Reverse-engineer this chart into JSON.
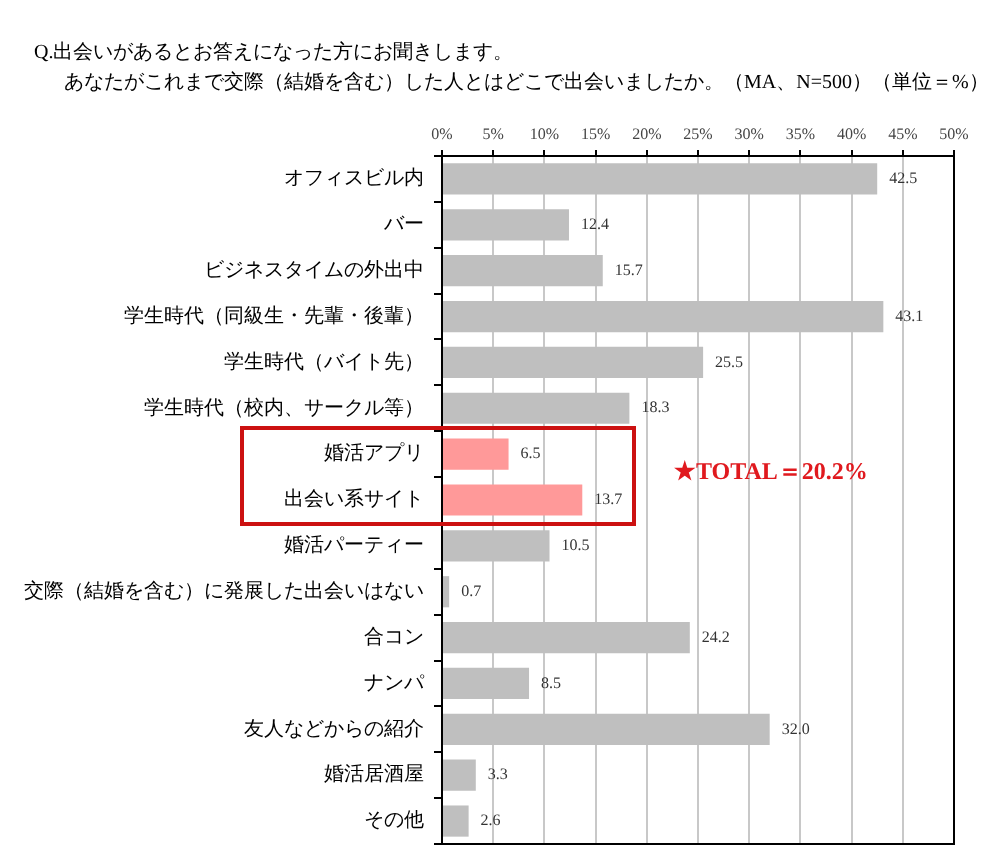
{
  "chart_data": {
    "type": "bar",
    "orientation": "horizontal",
    "title": "Q.出会いがあるとお答えになった方にお聞きします。",
    "subtitle": "あなたがこれまで交際（結婚を含む）した人とはどこで出会いましたか。（MA、N=500）（単位＝%）",
    "categories": [
      "オフィスビル内",
      "バー",
      "ビジネスタイムの外出中",
      "学生時代（同級生・先輩・後輩）",
      "学生時代（バイト先）",
      "学生時代（校内、サークル等）",
      "婚活アプリ",
      "出会い系サイト",
      "婚活パーティー",
      "交際（結婚を含む）に発展した出会いはない",
      "合コン",
      "ナンパ",
      "友人などからの紹介",
      "婚活居酒屋",
      "その他"
    ],
    "values": [
      42.5,
      12.4,
      15.7,
      43.1,
      25.5,
      18.3,
      6.5,
      13.7,
      10.5,
      0.7,
      24.2,
      8.5,
      32.0,
      3.3,
      2.6
    ],
    "colors": [
      "#bfbfbf",
      "#bfbfbf",
      "#bfbfbf",
      "#bfbfbf",
      "#bfbfbf",
      "#bfbfbf",
      "#ff9999",
      "#ff9999",
      "#bfbfbf",
      "#bfbfbf",
      "#bfbfbf",
      "#bfbfbf",
      "#bfbfbf",
      "#bfbfbf",
      "#bfbfbf"
    ],
    "value_labels": [
      "42.5",
      "12.4",
      "15.7",
      "43.1",
      "25.5",
      "18.3",
      "6.5",
      "13.7",
      "10.5",
      "0.7",
      "24.2",
      "8.5",
      "32.0",
      "3.3",
      "2.6"
    ],
    "xlim": [
      0,
      50
    ],
    "xticks": [
      {
        "value": 0,
        "label": "0%"
      },
      {
        "value": 5,
        "label": "5%"
      },
      {
        "value": 10,
        "label": "10%"
      },
      {
        "value": 15,
        "label": "15%"
      },
      {
        "value": 20,
        "label": "20%"
      },
      {
        "value": 25,
        "label": "25%"
      },
      {
        "value": 30,
        "label": "30%"
      },
      {
        "value": 35,
        "label": "35%"
      },
      {
        "value": 40,
        "label": "40%"
      },
      {
        "value": 45,
        "label": "45%"
      },
      {
        "value": 50,
        "label": "50%"
      }
    ],
    "grid": "x",
    "annotations": [
      "★TOTAL＝20.2%"
    ]
  }
}
